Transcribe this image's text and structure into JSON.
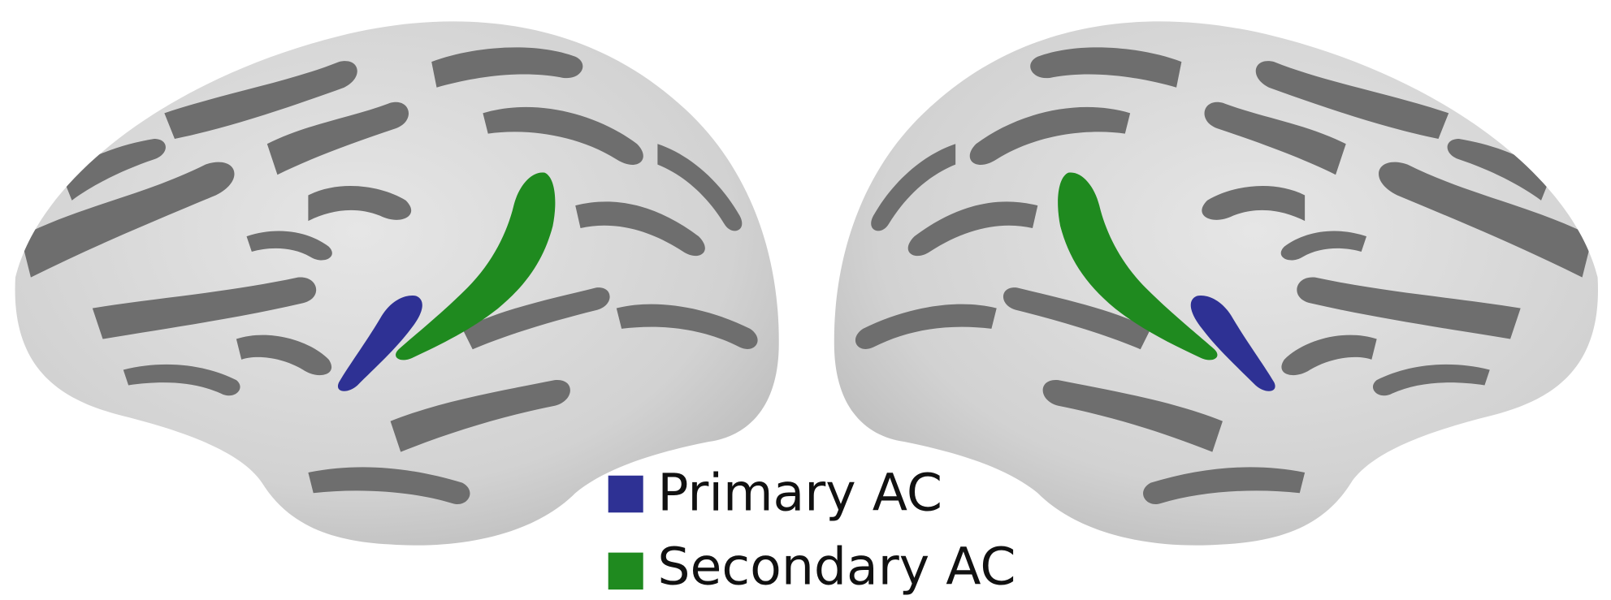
{
  "legend": {
    "items": [
      {
        "label": "Primary AC"
      },
      {
        "label": "Secondary AC"
      }
    ]
  }
}
